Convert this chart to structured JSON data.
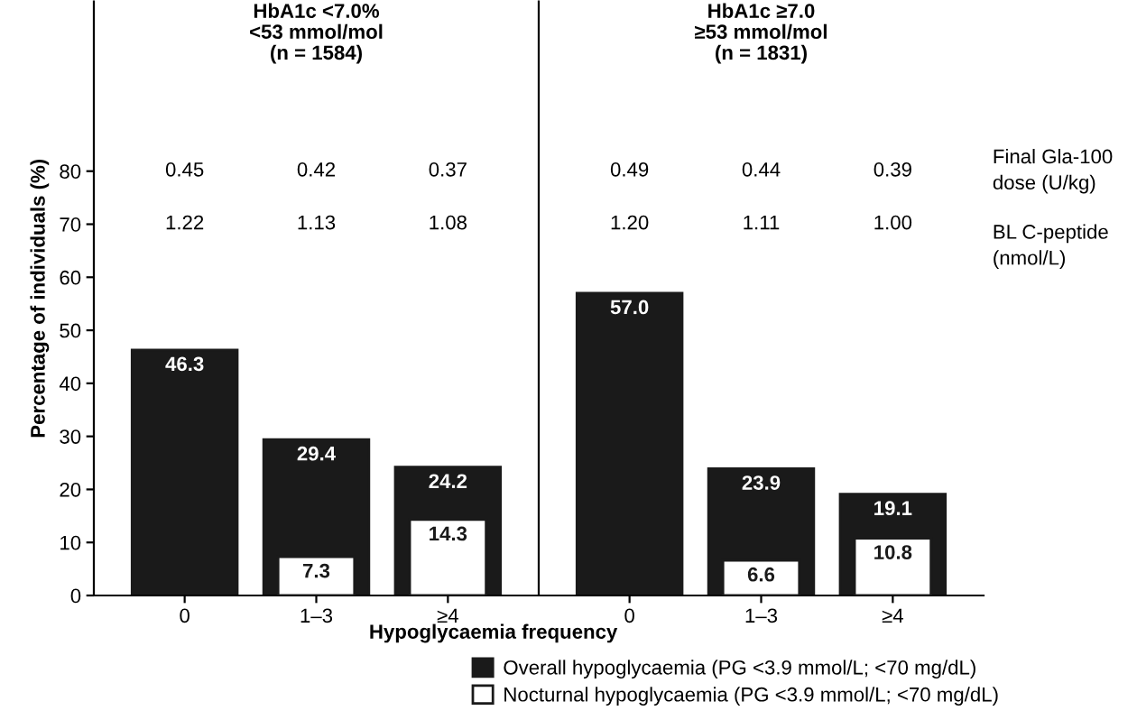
{
  "chart_data": [
    {
      "type": "bar",
      "title": "HbA1c <7.0%\n<53 mmol/mol\n(n = 1584)",
      "xlabel": "Hypoglycaemia frequency",
      "ylabel": "Percentage of individuals (%)",
      "categories": [
        "0",
        "1–3",
        "≥4"
      ],
      "series": [
        {
          "name": "Overall hypoglycaemia (PG <3.9 mmol/L; <70 mg/dL)",
          "color": "#1a1a1a",
          "values": [
            46.3,
            29.4,
            24.2
          ],
          "value_labels": [
            "46.3",
            "29.4",
            "24.2"
          ]
        },
        {
          "name": "Nocturnal hypoglycaemia (PG <3.9 mmol/L; <70 mg/dL)",
          "color": "#ffffff",
          "values": [
            null,
            7.3,
            14.3
          ],
          "value_labels": [
            null,
            "7.3",
            "14.3"
          ]
        }
      ],
      "ylim": [
        0,
        112
      ],
      "yticks": [
        0,
        10,
        20,
        30,
        40,
        50,
        60,
        70,
        80
      ],
      "grid": false,
      "legend": "bottom",
      "annotations": [
        "0.45",
        "0.42",
        "0.37",
        "1.22",
        "1.13",
        "1.08"
      ]
    },
    {
      "type": "bar",
      "title": "HbA1c ≥7.0\n≥53 mmol/mol\n(n = 1831)",
      "categories": [
        "0",
        "1–3",
        "≥4"
      ],
      "series": [
        {
          "name": "Overall hypoglycaemia (PG <3.9 mmol/L; <70 mg/dL)",
          "color": "#1a1a1a",
          "values": [
            57.0,
            23.9,
            19.1
          ],
          "value_labels": [
            "57.0",
            "23.9",
            "19.1"
          ]
        },
        {
          "name": "Nocturnal hypoglycaemia (PG <3.9 mmol/L; <70 mg/dL)",
          "color": "#ffffff",
          "values": [
            null,
            6.6,
            10.8
          ],
          "value_labels": [
            null,
            "6.6",
            "10.8"
          ]
        }
      ],
      "ylim": [
        0,
        112
      ],
      "yticks": [
        0,
        10,
        20,
        30,
        40,
        50,
        60,
        70,
        80
      ],
      "grid": false,
      "tick_labels": "x",
      "annotations": [
        "0.49",
        "0.44",
        "0.39",
        "1.20",
        "1.11",
        "1.00",
        "Final Gla-100\ndose (U/kg)",
        "BL C-peptide\n(nmol/L)"
      ]
    }
  ]
}
